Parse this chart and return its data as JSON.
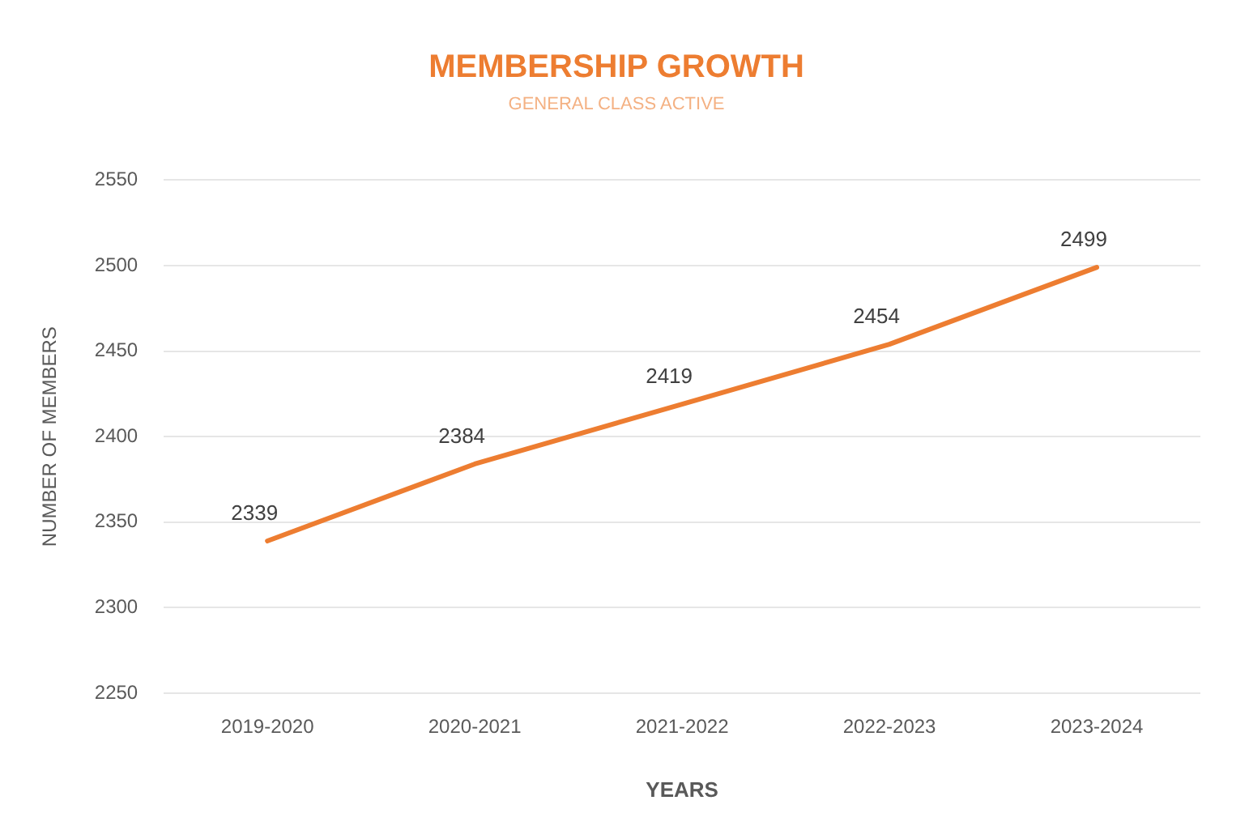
{
  "chart_data": {
    "type": "line",
    "title": "MEMBERSHIP GROWTH",
    "subtitle": "GENERAL CLASS ACTIVE",
    "xlabel": "YEARS",
    "ylabel": "NUMBER OF MEMBERS",
    "categories": [
      "2019-2020",
      "2020-2021",
      "2021-2022",
      "2022-2023",
      "2023-2024"
    ],
    "series": [
      {
        "color": "#ed7d31",
        "values": [
          2339,
          2384,
          2419,
          2454,
          2499
        ]
      }
    ],
    "ylim": [
      2250,
      2550
    ],
    "yticks": [
      2250,
      2300,
      2350,
      2400,
      2450,
      2500,
      2550
    ],
    "grid": "y",
    "data_labels": true,
    "marker": "none",
    "line_style": "solid",
    "legend": false
  }
}
